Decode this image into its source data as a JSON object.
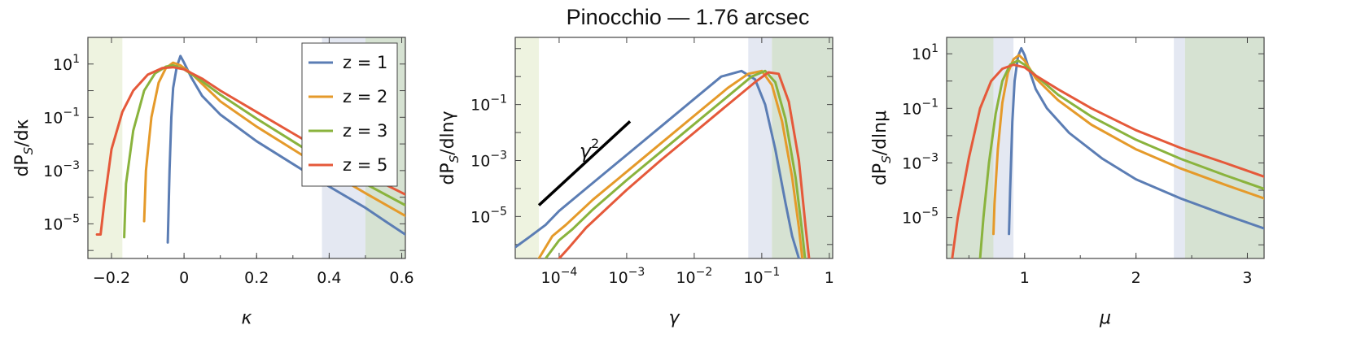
{
  "figure": {
    "title": "Pinocchio   —  1.76 arcsec"
  },
  "colors": {
    "z1": "#5b7db4",
    "z2": "#e59a2a",
    "z3": "#8ab33d",
    "z5": "#e5593a",
    "band_green_light": "#eef3e0",
    "band_blue": "#e4e8f2",
    "band_green_dark": "#d6e2d2"
  },
  "legend": {
    "entries": [
      {
        "label": "z = 1",
        "series": "z1"
      },
      {
        "label": "z = 2",
        "series": "z2"
      },
      {
        "label": "z = 3",
        "series": "z3"
      },
      {
        "label": "z = 5",
        "series": "z5"
      }
    ]
  },
  "chart_data": [
    {
      "type": "line",
      "panel": "kappa",
      "xlabel": "κ",
      "ylabel": "dP_S/dκ",
      "xlim": [
        -0.265,
        0.61
      ],
      "ylim_log10": [
        -6.3,
        2.0
      ],
      "yscale": "log",
      "xticks": [
        {
          "v": -0.2,
          "label": "−0.2"
        },
        {
          "v": 0,
          "label": "0"
        },
        {
          "v": 0.2,
          "label": "0.2"
        },
        {
          "v": 0.4,
          "label": "0.4"
        },
        {
          "v": 0.6,
          "label": "0.6"
        }
      ],
      "yticks": [
        {
          "e": 1,
          "label": "1"
        },
        {
          "e": -1,
          "label": "−1"
        },
        {
          "e": -3,
          "label": "−3"
        },
        {
          "e": -5,
          "label": "−5"
        }
      ],
      "bands": [
        {
          "from": -0.265,
          "to": -0.17,
          "color": "band_green_light"
        },
        {
          "from": 0.38,
          "to": 0.5,
          "color": "band_blue"
        },
        {
          "from": 0.5,
          "to": 0.61,
          "color": "band_green_dark"
        }
      ],
      "series": [
        {
          "name": "z = 1",
          "color": "z1",
          "points": [
            [
              -0.045,
              -5.7
            ],
            [
              -0.04,
              -3.0
            ],
            [
              -0.035,
              -1.0
            ],
            [
              -0.03,
              0.1
            ],
            [
              -0.02,
              0.9
            ],
            [
              -0.01,
              1.3
            ],
            [
              0.0,
              1.05
            ],
            [
              0.02,
              0.5
            ],
            [
              0.05,
              -0.2
            ],
            [
              0.1,
              -0.9
            ],
            [
              0.2,
              -1.9
            ],
            [
              0.3,
              -2.75
            ],
            [
              0.4,
              -3.6
            ],
            [
              0.5,
              -4.4
            ],
            [
              0.56,
              -4.95
            ],
            [
              0.61,
              -5.4
            ]
          ]
        },
        {
          "name": "z = 2",
          "color": "z2",
          "points": [
            [
              -0.11,
              -4.9
            ],
            [
              -0.105,
              -3.0
            ],
            [
              -0.09,
              -1.0
            ],
            [
              -0.07,
              0.3
            ],
            [
              -0.05,
              0.85
            ],
            [
              -0.03,
              1.05
            ],
            [
              -0.01,
              0.95
            ],
            [
              0.02,
              0.65
            ],
            [
              0.05,
              0.25
            ],
            [
              0.1,
              -0.4
            ],
            [
              0.2,
              -1.35
            ],
            [
              0.3,
              -2.2
            ],
            [
              0.4,
              -3.05
            ],
            [
              0.5,
              -3.85
            ],
            [
              0.61,
              -4.7
            ]
          ]
        },
        {
          "name": "z = 3",
          "color": "z3",
          "points": [
            [
              -0.165,
              -5.5
            ],
            [
              -0.16,
              -3.5
            ],
            [
              -0.14,
              -1.5
            ],
            [
              -0.11,
              0.0
            ],
            [
              -0.08,
              0.65
            ],
            [
              -0.05,
              0.9
            ],
            [
              -0.03,
              0.95
            ],
            [
              0.0,
              0.8
            ],
            [
              0.05,
              0.35
            ],
            [
              0.1,
              -0.15
            ],
            [
              0.2,
              -1.05
            ],
            [
              0.3,
              -1.9
            ],
            [
              0.4,
              -2.75
            ],
            [
              0.5,
              -3.5
            ],
            [
              0.61,
              -4.3
            ]
          ]
        },
        {
          "name": "z = 5",
          "color": "z5",
          "points": [
            [
              -0.24,
              -5.4
            ],
            [
              -0.23,
              -5.4
            ],
            [
              -0.22,
              -4.2
            ],
            [
              -0.2,
              -2.2
            ],
            [
              -0.17,
              -0.8
            ],
            [
              -0.14,
              0.0
            ],
            [
              -0.1,
              0.6
            ],
            [
              -0.06,
              0.85
            ],
            [
              -0.03,
              0.88
            ],
            [
              0.0,
              0.8
            ],
            [
              0.05,
              0.45
            ],
            [
              0.1,
              0.0
            ],
            [
              0.2,
              -0.8
            ],
            [
              0.3,
              -1.6
            ],
            [
              0.4,
              -2.4
            ],
            [
              0.5,
              -3.15
            ],
            [
              0.61,
              -3.9
            ]
          ]
        }
      ]
    },
    {
      "type": "line",
      "panel": "gamma",
      "xlabel": "γ",
      "ylabel": "dP_S/dlnγ",
      "xscale": "log",
      "xlim_log10": [
        -4.65,
        0.05
      ],
      "ylim_log10": [
        -6.5,
        1.4
      ],
      "yscale": "log",
      "xticks": [
        {
          "e": -4,
          "label": "−4"
        },
        {
          "e": -3,
          "label": "−3"
        },
        {
          "e": -2,
          "label": "−2"
        },
        {
          "e": -1,
          "label": "−1"
        },
        {
          "e": 0,
          "label": "1"
        }
      ],
      "yticks": [
        {
          "e": -1,
          "label": "−1"
        },
        {
          "e": -3,
          "label": "−3"
        },
        {
          "e": -5,
          "label": "−5"
        }
      ],
      "bands": [
        {
          "from": -4.65,
          "to": -4.3,
          "color": "band_green_light"
        },
        {
          "from": -1.2,
          "to": -0.85,
          "color": "band_blue"
        },
        {
          "from": -0.85,
          "to": 0.05,
          "color": "band_green_dark"
        }
      ],
      "annotation": {
        "text": "γ",
        "superscript": "2",
        "line": [
          [
            -4.3,
            -4.6
          ],
          [
            -2.95,
            -1.6
          ]
        ],
        "text_pos": [
          -3.7,
          -2.9
        ]
      },
      "series": [
        {
          "name": "z = 1",
          "color": "z1",
          "points": [
            [
              -4.65,
              -6.1
            ],
            [
              -4.45,
              -5.75
            ],
            [
              -4.2,
              -5.3
            ],
            [
              -4.0,
              -4.8
            ],
            [
              -3.5,
              -3.8
            ],
            [
              -3.0,
              -2.8
            ],
            [
              -2.5,
              -1.8
            ],
            [
              -2.0,
              -0.8
            ],
            [
              -1.6,
              0.0
            ],
            [
              -1.3,
              0.2
            ],
            [
              -1.1,
              -0.1
            ],
            [
              -0.95,
              -1.0
            ],
            [
              -0.8,
              -2.6
            ],
            [
              -0.65,
              -4.5
            ],
            [
              -0.55,
              -5.7
            ],
            [
              -0.45,
              -6.5
            ]
          ]
        },
        {
          "name": "z = 2",
          "color": "z2",
          "points": [
            [
              -4.3,
              -6.5
            ],
            [
              -4.1,
              -5.7
            ],
            [
              -3.9,
              -5.3
            ],
            [
              -3.5,
              -4.4
            ],
            [
              -3.0,
              -3.4
            ],
            [
              -2.5,
              -2.4
            ],
            [
              -2.0,
              -1.4
            ],
            [
              -1.5,
              -0.4
            ],
            [
              -1.2,
              0.1
            ],
            [
              -1.0,
              0.2
            ],
            [
              -0.85,
              -0.3
            ],
            [
              -0.7,
              -1.6
            ],
            [
              -0.55,
              -3.6
            ],
            [
              -0.45,
              -5.4
            ],
            [
              -0.4,
              -6.5
            ]
          ]
        },
        {
          "name": "z = 3",
          "color": "z3",
          "points": [
            [
              -4.2,
              -6.5
            ],
            [
              -4.0,
              -5.85
            ],
            [
              -3.8,
              -5.45
            ],
            [
              -3.5,
              -4.75
            ],
            [
              -3.0,
              -3.7
            ],
            [
              -2.5,
              -2.7
            ],
            [
              -2.0,
              -1.7
            ],
            [
              -1.5,
              -0.7
            ],
            [
              -1.15,
              0.0
            ],
            [
              -0.95,
              0.2
            ],
            [
              -0.8,
              -0.2
            ],
            [
              -0.65,
              -1.5
            ],
            [
              -0.5,
              -3.6
            ],
            [
              -0.4,
              -5.6
            ],
            [
              -0.36,
              -6.5
            ]
          ]
        },
        {
          "name": "z = 5",
          "color": "z5",
          "points": [
            [
              -4.0,
              -6.5
            ],
            [
              -3.85,
              -6.1
            ],
            [
              -3.6,
              -5.4
            ],
            [
              -3.0,
              -4.05
            ],
            [
              -2.5,
              -3.0
            ],
            [
              -2.0,
              -2.0
            ],
            [
              -1.5,
              -1.0
            ],
            [
              -1.1,
              -0.2
            ],
            [
              -0.9,
              0.15
            ],
            [
              -0.75,
              0.1
            ],
            [
              -0.6,
              -0.9
            ],
            [
              -0.45,
              -3.0
            ],
            [
              -0.35,
              -5.4
            ],
            [
              -0.3,
              -6.5
            ]
          ]
        }
      ]
    },
    {
      "type": "line",
      "panel": "mu",
      "xlabel": "μ",
      "ylabel": "dP_S/dlnμ",
      "xlim": [
        0.3,
        3.15
      ],
      "ylim_log10": [
        -6.5,
        1.6
      ],
      "yscale": "log",
      "xticks": [
        {
          "v": 1,
          "label": "1"
        },
        {
          "v": 2,
          "label": "2"
        },
        {
          "v": 3,
          "label": "3"
        }
      ],
      "yticks": [
        {
          "e": 1,
          "label": "1"
        },
        {
          "e": -1,
          "label": "−1"
        },
        {
          "e": -3,
          "label": "−3"
        },
        {
          "e": -5,
          "label": "−5"
        }
      ],
      "bands": [
        {
          "from": 0.3,
          "to": 0.72,
          "color": "band_green_dark"
        },
        {
          "from": 0.72,
          "to": 0.9,
          "color": "band_blue"
        },
        {
          "from": 2.34,
          "to": 2.44,
          "color": "band_blue"
        },
        {
          "from": 2.44,
          "to": 3.15,
          "color": "band_green_dark"
        }
      ],
      "series": [
        {
          "name": "z = 1",
          "color": "z1",
          "points": [
            [
              0.86,
              -5.6
            ],
            [
              0.87,
              -4.0
            ],
            [
              0.89,
              -1.5
            ],
            [
              0.91,
              0.0
            ],
            [
              0.94,
              0.9
            ],
            [
              0.97,
              1.2
            ],
            [
              1.0,
              0.95
            ],
            [
              1.05,
              0.3
            ],
            [
              1.1,
              -0.3
            ],
            [
              1.2,
              -1.0
            ],
            [
              1.4,
              -1.9
            ],
            [
              1.7,
              -2.85
            ],
            [
              2.0,
              -3.6
            ],
            [
              2.4,
              -4.3
            ],
            [
              2.8,
              -4.9
            ],
            [
              3.15,
              -5.4
            ]
          ]
        },
        {
          "name": "z = 2",
          "color": "z2",
          "points": [
            [
              0.72,
              -5.6
            ],
            [
              0.73,
              -4.5
            ],
            [
              0.76,
              -2.5
            ],
            [
              0.8,
              -0.8
            ],
            [
              0.85,
              0.3
            ],
            [
              0.9,
              0.8
            ],
            [
              0.95,
              0.95
            ],
            [
              1.0,
              0.75
            ],
            [
              1.1,
              0.1
            ],
            [
              1.3,
              -0.7
            ],
            [
              1.6,
              -1.6
            ],
            [
              2.0,
              -2.5
            ],
            [
              2.4,
              -3.2
            ],
            [
              2.8,
              -3.8
            ],
            [
              3.15,
              -4.3
            ]
          ]
        },
        {
          "name": "z = 3",
          "color": "z3",
          "points": [
            [
              0.6,
              -6.5
            ],
            [
              0.63,
              -5.0
            ],
            [
              0.68,
              -3.0
            ],
            [
              0.74,
              -1.2
            ],
            [
              0.8,
              0.0
            ],
            [
              0.87,
              0.6
            ],
            [
              0.94,
              0.75
            ],
            [
              1.0,
              0.6
            ],
            [
              1.1,
              0.2
            ],
            [
              1.3,
              -0.5
            ],
            [
              1.6,
              -1.3
            ],
            [
              2.0,
              -2.15
            ],
            [
              2.4,
              -2.85
            ],
            [
              2.8,
              -3.45
            ],
            [
              3.15,
              -3.95
            ]
          ]
        },
        {
          "name": "z = 5",
          "color": "z5",
          "points": [
            [
              0.35,
              -6.5
            ],
            [
              0.4,
              -5.0
            ],
            [
              0.5,
              -2.8
            ],
            [
              0.6,
              -1.0
            ],
            [
              0.7,
              0.0
            ],
            [
              0.8,
              0.45
            ],
            [
              0.9,
              0.6
            ],
            [
              1.0,
              0.5
            ],
            [
              1.1,
              0.2
            ],
            [
              1.3,
              -0.3
            ],
            [
              1.6,
              -1.0
            ],
            [
              2.0,
              -1.8
            ],
            [
              2.4,
              -2.45
            ],
            [
              2.8,
              -3.0
            ],
            [
              3.15,
              -3.5
            ]
          ]
        }
      ]
    }
  ]
}
